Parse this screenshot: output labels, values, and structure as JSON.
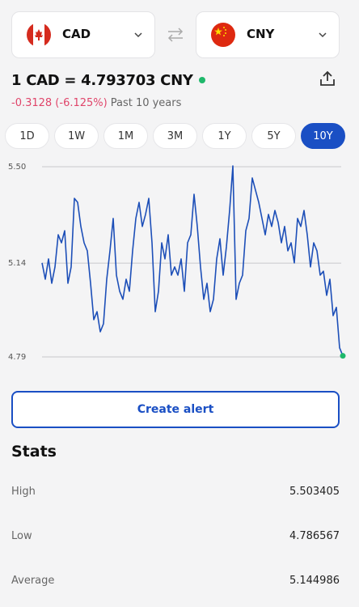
{
  "header": {
    "from_currency": "CAD",
    "to_currency": "CNY"
  },
  "rate": {
    "title": "1 CAD = 4.793703 CNY",
    "change": "-0.3128 (-6.125%)",
    "period": "Past 10 years"
  },
  "tabs": [
    "1D",
    "1W",
    "1M",
    "3M",
    "1Y",
    "5Y",
    "10Y"
  ],
  "active_tab": 6,
  "chart_data": {
    "type": "line",
    "color": "#1d4fb8",
    "end_marker_color": "#1fb86b",
    "grid": true,
    "ylim": [
      4.79,
      5.5
    ],
    "yticks": [
      {
        "value": 4.79,
        "label": "4.79"
      },
      {
        "value": 5.14,
        "label": "5.14"
      },
      {
        "value": 5.5,
        "label": "5.50"
      }
    ],
    "values": [
      5.141,
      5.08,
      5.156,
      5.065,
      5.126,
      5.246,
      5.216,
      5.261,
      5.065,
      5.126,
      5.382,
      5.367,
      5.277,
      5.216,
      5.186,
      5.065,
      4.929,
      4.959,
      4.884,
      4.914,
      5.08,
      5.186,
      5.307,
      5.095,
      5.035,
      5.005,
      5.08,
      5.035,
      5.186,
      5.307,
      5.367,
      5.277,
      5.322,
      5.382,
      5.216,
      4.959,
      5.035,
      5.216,
      5.156,
      5.246,
      5.095,
      5.126,
      5.095,
      5.156,
      5.035,
      5.216,
      5.246,
      5.397,
      5.277,
      5.126,
      5.005,
      5.065,
      4.959,
      5.005,
      5.156,
      5.231,
      5.095,
      5.201,
      5.337,
      5.503,
      5.005,
      5.065,
      5.095,
      5.261,
      5.307,
      5.458,
      5.412,
      5.367,
      5.307,
      5.246,
      5.322,
      5.277,
      5.337,
      5.292,
      5.216,
      5.277,
      5.186,
      5.216,
      5.141,
      5.307,
      5.277,
      5.337,
      5.246,
      5.126,
      5.216,
      5.186,
      5.095,
      5.11,
      5.02,
      5.08,
      4.944,
      4.975,
      4.824,
      4.794
    ]
  },
  "button": "Create alert",
  "stats": {
    "title": "Stats",
    "rows": [
      [
        "High",
        "5.503405"
      ],
      [
        "Low",
        "4.786567"
      ],
      [
        "Average",
        "5.144986"
      ]
    ]
  }
}
